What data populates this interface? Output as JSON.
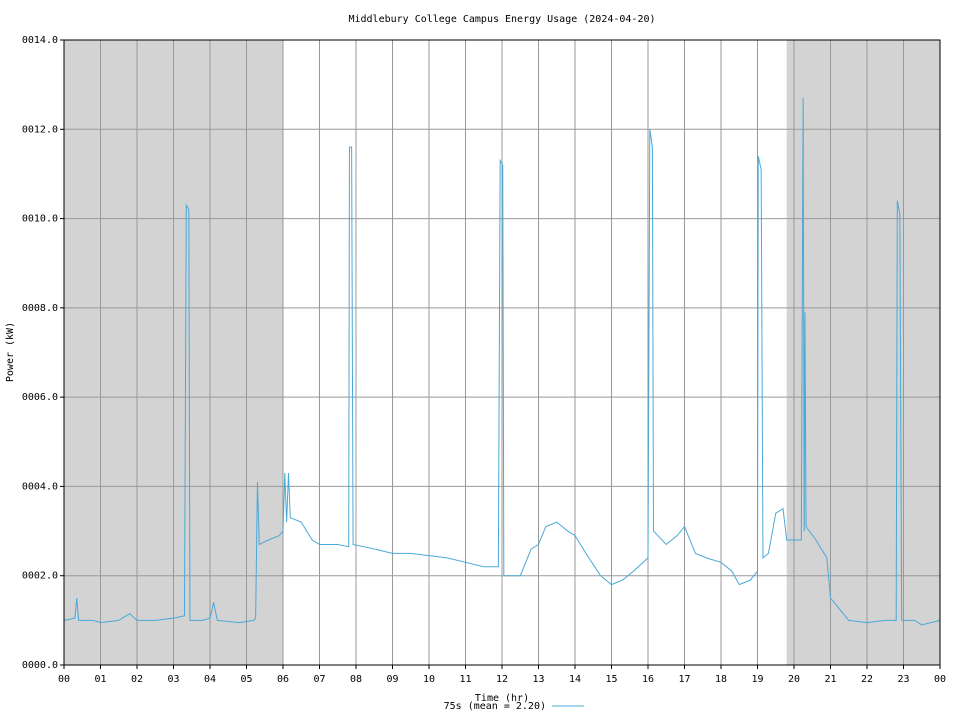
{
  "chart_data": {
    "type": "line",
    "title": "Middlebury College Campus Energy Usage (2024-04-20)",
    "x_label": "Time (hr)",
    "y_label": "Power (kW)",
    "xlim": [
      0,
      24
    ],
    "ylim": [
      0,
      14
    ],
    "xticks": [
      {
        "value": 0,
        "label": "00"
      },
      {
        "value": 1,
        "label": "01"
      },
      {
        "value": 2,
        "label": "02"
      },
      {
        "value": 3,
        "label": "03"
      },
      {
        "value": 4,
        "label": "04"
      },
      {
        "value": 5,
        "label": "05"
      },
      {
        "value": 6,
        "label": "06"
      },
      {
        "value": 7,
        "label": "07"
      },
      {
        "value": 8,
        "label": "08"
      },
      {
        "value": 9,
        "label": "09"
      },
      {
        "value": 10,
        "label": "10"
      },
      {
        "value": 11,
        "label": "11"
      },
      {
        "value": 12,
        "label": "12"
      },
      {
        "value": 13,
        "label": "13"
      },
      {
        "value": 14,
        "label": "14"
      },
      {
        "value": 15,
        "label": "15"
      },
      {
        "value": 16,
        "label": "16"
      },
      {
        "value": 17,
        "label": "17"
      },
      {
        "value": 18,
        "label": "18"
      },
      {
        "value": 19,
        "label": "19"
      },
      {
        "value": 20,
        "label": "20"
      },
      {
        "value": 21,
        "label": "21"
      },
      {
        "value": 22,
        "label": "22"
      },
      {
        "value": 23,
        "label": "23"
      },
      {
        "value": 24,
        "label": "00"
      }
    ],
    "yticks": [
      {
        "value": 0,
        "label": "0000.0"
      },
      {
        "value": 2,
        "label": "0002.0"
      },
      {
        "value": 4,
        "label": "0004.0"
      },
      {
        "value": 6,
        "label": "0006.0"
      },
      {
        "value": 8,
        "label": "0008.0"
      },
      {
        "value": 10,
        "label": "0010.0"
      },
      {
        "value": 12,
        "label": "0012.0"
      },
      {
        "value": 14,
        "label": "0014.0"
      }
    ],
    "grid": true,
    "shaded_ranges": [
      [
        0,
        6
      ],
      [
        19.8,
        24
      ]
    ],
    "shade_color": "#d3d3d3",
    "series": [
      {
        "name": "75s (mean = 2.20)",
        "color": "#4aa8d8",
        "x": [
          0,
          0.3,
          0.35,
          0.4,
          0.8,
          1,
          1.5,
          1.8,
          2,
          2.5,
          3,
          3.3,
          3.35,
          3.42,
          3.45,
          3.8,
          4,
          4.1,
          4.2,
          4.8,
          5.2,
          5.25,
          5.3,
          5.35,
          5.6,
          5.9,
          6,
          6.05,
          6.1,
          6.15,
          6.2,
          6.5,
          6.8,
          7,
          7.5,
          7.8,
          7.82,
          7.88,
          7.92,
          8.5,
          9,
          9.5,
          10,
          10.5,
          11,
          11.5,
          11.9,
          11.95,
          12.02,
          12.05,
          12.5,
          12.8,
          13,
          13.2,
          13.5,
          13.8,
          14,
          14.3,
          14.7,
          15,
          15.3,
          15.6,
          16,
          16.05,
          16.12,
          16.15,
          16.5,
          16.8,
          17,
          17.3,
          17.6,
          18,
          18.3,
          18.5,
          18.8,
          19,
          19.02,
          19.1,
          19.15,
          19.3,
          19.5,
          19.7,
          19.8,
          20.2,
          20.25,
          20.28,
          20.3,
          20.33,
          20.6,
          20.9,
          21,
          21.2,
          21.5,
          22,
          22.5,
          22.8,
          22.83,
          22.9,
          22.95,
          23.3,
          23.5,
          24
        ],
        "values": [
          1,
          1.05,
          1.5,
          1,
          1,
          0.95,
          1,
          1.15,
          1,
          1,
          1.05,
          1.1,
          10.3,
          10.2,
          1,
          1,
          1.05,
          1.4,
          1,
          0.95,
          1,
          1.05,
          4.1,
          2.7,
          2.8,
          2.9,
          3,
          4.3,
          3.2,
          4.3,
          3.3,
          3.2,
          2.8,
          2.7,
          2.7,
          2.65,
          11.6,
          11.6,
          2.7,
          2.6,
          2.5,
          2.5,
          2.45,
          2.4,
          2.3,
          2.2,
          2.2,
          11.3,
          11.2,
          2,
          2,
          2.6,
          2.7,
          3.1,
          3.2,
          3,
          2.9,
          2.5,
          2,
          1.8,
          1.9,
          2.1,
          2.4,
          12,
          11.6,
          3,
          2.7,
          2.9,
          3.1,
          2.5,
          2.4,
          2.3,
          2.1,
          1.8,
          1.9,
          2.1,
          11.4,
          11.1,
          2.4,
          2.5,
          3.4,
          3.5,
          2.8,
          2.8,
          12.7,
          3,
          7.9,
          3.1,
          2.8,
          2.4,
          1.5,
          1.3,
          1,
          0.95,
          1,
          1,
          10.4,
          10.1,
          1,
          1,
          0.9,
          1
        ]
      }
    ]
  }
}
